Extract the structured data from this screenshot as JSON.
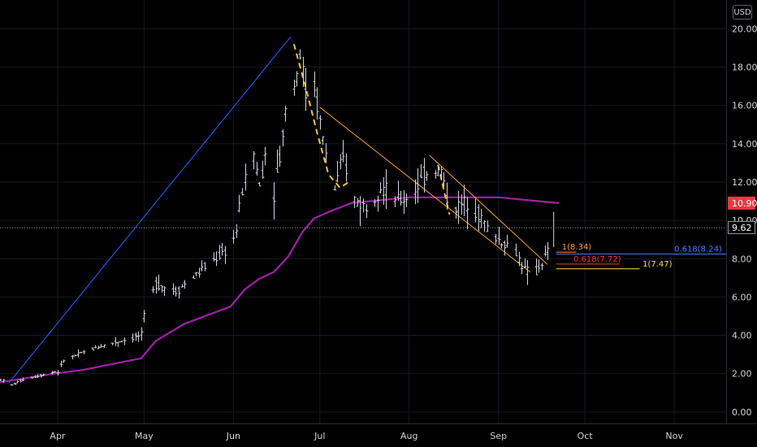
{
  "currency_label": "USD",
  "colors": {
    "background": "#000000",
    "grid": "#161a22",
    "candles": "#d1d4dc",
    "moving_average": "#a020a8",
    "trendline": "#2962ff",
    "channel": "#f0a830",
    "dashed_path": "#f5c242",
    "fib_orange": "#ff9a3c",
    "fib_blue": "#4f7cff",
    "fib_yellow": "#ffe135",
    "fib_red": "#f23645"
  },
  "chart_data": {
    "type": "candlestick",
    "currency": "USD",
    "x_ticks": [
      "Apr",
      "May",
      "Jun",
      "Jul",
      "Aug",
      "Sep",
      "Oct",
      "Nov"
    ],
    "y_ticks": [
      "0.00",
      "2.00",
      "4.00",
      "6.00",
      "8.00",
      "10.00",
      "12.00",
      "14.00",
      "16.00",
      "18.00",
      "20.00"
    ],
    "ylim": [
      -0.6,
      21.5
    ],
    "xlim": [
      "2020-03-12",
      "2020-11-19"
    ],
    "price_key_points": [
      [
        "2020-03-12",
        1.7
      ],
      [
        "2020-03-16",
        1.4
      ],
      [
        "2020-03-20",
        1.7
      ],
      [
        "2020-03-31",
        2.1
      ],
      [
        "2020-04-01",
        2.1
      ],
      [
        "2020-04-03",
        2.7
      ],
      [
        "2020-04-15",
        3.4
      ],
      [
        "2020-04-30",
        4.0
      ],
      [
        "2020-05-01",
        5.0
      ],
      [
        "2020-05-05",
        6.7
      ],
      [
        "2020-05-12",
        6.3
      ],
      [
        "2020-05-20",
        7.3
      ],
      [
        "2020-05-28",
        8.3
      ],
      [
        "2020-05-31",
        8.6
      ],
      [
        "2020-06-02",
        9.5
      ],
      [
        "2020-06-04",
        11.6
      ],
      [
        "2020-06-08",
        13.5
      ],
      [
        "2020-06-10",
        11.8
      ],
      [
        "2020-06-12",
        13.5
      ],
      [
        "2020-06-15",
        11.5
      ],
      [
        "2020-06-18",
        14.3
      ],
      [
        "2020-06-20",
        18.0
      ],
      [
        "2020-06-22",
        17.0
      ],
      [
        "2020-06-24",
        18.8
      ],
      [
        "2020-06-26",
        16.6
      ],
      [
        "2020-06-29",
        17.0
      ],
      [
        "2020-07-02",
        14.2
      ],
      [
        "2020-07-06",
        11.6
      ],
      [
        "2020-07-09",
        13.2
      ],
      [
        "2020-07-13",
        11.1
      ],
      [
        "2020-07-17",
        10.7
      ],
      [
        "2020-07-22",
        11.8
      ],
      [
        "2020-07-28",
        11.0
      ],
      [
        "2020-08-01",
        11.2
      ],
      [
        "2020-08-08",
        12.7
      ],
      [
        "2020-08-12",
        12.6
      ],
      [
        "2020-08-15",
        10.5
      ],
      [
        "2020-08-19",
        10.8
      ],
      [
        "2020-08-22",
        11.1
      ],
      [
        "2020-08-26",
        10.1
      ],
      [
        "2020-08-29",
        9.3
      ],
      [
        "2020-09-03",
        8.8
      ],
      [
        "2020-09-06",
        8.6
      ],
      [
        "2020-09-10",
        7.4
      ],
      [
        "2020-09-13",
        7.1
      ],
      [
        "2020-09-16",
        7.8
      ],
      [
        "2020-09-19",
        8.6
      ],
      [
        "2020-09-20",
        9.62
      ]
    ],
    "moving_average": [
      [
        "2020-03-12",
        1.55
      ],
      [
        "2020-03-31",
        2.0
      ],
      [
        "2020-04-10",
        2.2
      ],
      [
        "2020-04-30",
        2.8
      ],
      [
        "2020-05-05",
        3.7
      ],
      [
        "2020-05-15",
        4.6
      ],
      [
        "2020-05-31",
        5.5
      ],
      [
        "2020-06-05",
        6.4
      ],
      [
        "2020-06-10",
        6.95
      ],
      [
        "2020-06-15",
        7.3
      ],
      [
        "2020-06-20",
        8.1
      ],
      [
        "2020-06-25",
        9.4
      ],
      [
        "2020-06-29",
        10.1
      ],
      [
        "2020-07-05",
        10.5
      ],
      [
        "2020-07-12",
        10.9
      ],
      [
        "2020-08-01",
        11.2
      ],
      [
        "2020-08-15",
        11.2
      ],
      [
        "2020-09-01",
        11.2
      ],
      [
        "2020-09-22",
        10.9
      ]
    ],
    "trendline": [
      [
        "2020-03-15",
        1.5
      ],
      [
        "2020-06-21",
        19.6
      ]
    ],
    "channel_lines": [
      [
        [
          "2020-07-01",
          15.9
        ],
        [
          "2020-09-12",
          7.3
        ]
      ],
      [
        [
          "2020-08-08",
          13.4
        ],
        [
          "2020-09-18",
          7.7
        ]
      ]
    ],
    "dashed_path": [
      [
        "2020-06-22",
        19.2
      ],
      [
        "2020-06-26",
        17.0
      ],
      [
        "2020-06-30",
        14.6
      ],
      [
        "2020-07-04",
        12.4
      ],
      [
        "2020-07-08",
        11.7
      ],
      [
        "2020-07-11",
        12.0
      ]
    ],
    "dashed_path_2": [
      [
        "2020-08-11",
        12.9
      ],
      [
        "2020-08-15",
        10.3
      ]
    ],
    "fib_levels": [
      {
        "label": "1(8.34)",
        "value": 8.34,
        "color": "fib_orange",
        "x_range": [
          "2020-09-21",
          "2020-09-28"
        ],
        "text_date": "2020-09-23"
      },
      {
        "label": "0.618(7.72)",
        "value": 7.72,
        "color": "fib_red",
        "x_range": [
          "2020-09-21",
          "2020-10-13"
        ],
        "text_date": "2020-09-27"
      },
      {
        "label": "1(7.47)",
        "value": 7.47,
        "color": "fib_yellow",
        "x_range": [
          "2020-09-21",
          "2020-10-20"
        ],
        "text_date": "2020-10-21"
      },
      {
        "label": "0.618(8.24)",
        "value": 8.24,
        "color": "fib_blue",
        "x_range": [
          "2020-09-21",
          "2020-11-19"
        ],
        "text_date": "2020-11-01"
      }
    ],
    "current_price_tag": "9.62",
    "current_price": 9.62,
    "ma_price_tag": "10.90",
    "ma_price": 10.9
  }
}
